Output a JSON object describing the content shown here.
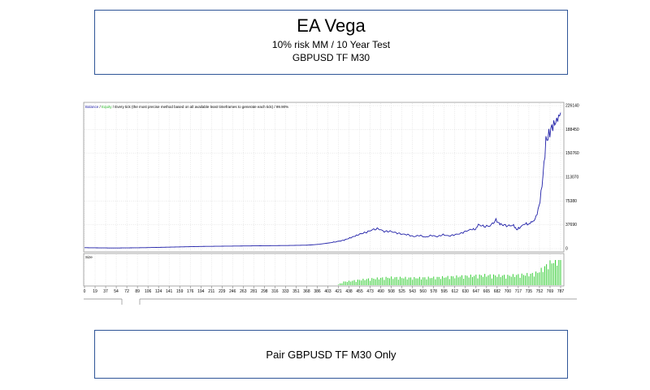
{
  "header": {
    "title": "EA Vega",
    "subtitle": "10% risk MM / 10 Year Test",
    "pair": "GBPUSD TF M30"
  },
  "footer": {
    "text": "Pair GBPUSD TF M30 Only"
  },
  "chart_data": {
    "type": "line",
    "legend": {
      "balance": "Balance",
      "separator": " / ",
      "equity": "Equity",
      "info": " / Every tick (the most precise method based on all available least timeframes to generate each tick) / 99.90%"
    },
    "colors": {
      "balance": "#1f1fa8",
      "equity": "#2eb82e",
      "volume": "#33cc33",
      "grid": "#c8c8c8"
    },
    "y_ticks": [
      0,
      37690,
      75380,
      113070,
      150760,
      188450,
      226140
    ],
    "y_tick_labels": [
      "0",
      "37690",
      "75380",
      "113070",
      "150760",
      "188450",
      "226140"
    ],
    "ylim": [
      0,
      226140
    ],
    "xlim": [
      0,
      810
    ],
    "x_tick_labels": [
      "0",
      "19",
      "37",
      "54",
      "72",
      "89",
      "106",
      "124",
      "141",
      "159",
      "176",
      "194",
      "211",
      "229",
      "246",
      "263",
      "281",
      "298",
      "316",
      "333",
      "351",
      "368",
      "386",
      "403",
      "421",
      "438",
      "455",
      "473",
      "490",
      "508",
      "525",
      "543",
      "560",
      "578",
      "595",
      "612",
      "630",
      "647",
      "665",
      "682",
      "700",
      "717",
      "735",
      "752",
      "769",
      "787"
    ],
    "volume_label": "Size",
    "series": [
      {
        "name": "Balance",
        "x": [
          0,
          50,
          100,
          150,
          200,
          250,
          300,
          350,
          380,
          400,
          420,
          440,
          455,
          470,
          480,
          490,
          500,
          510,
          520,
          530,
          540,
          550,
          560,
          570,
          580,
          590,
          600,
          610,
          620,
          630,
          640,
          650,
          660,
          665,
          670,
          680,
          690,
          700,
          705,
          710,
          720,
          730,
          735,
          740,
          750,
          755,
          760,
          765,
          770,
          775,
          780,
          785,
          790,
          795,
          800,
          805,
          810
        ],
        "y": [
          1500,
          1000,
          1500,
          2500,
          3500,
          4000,
          4500,
          5000,
          5500,
          7000,
          9500,
          13000,
          18000,
          23500,
          26000,
          30000,
          31500,
          27000,
          27500,
          25000,
          23000,
          22000,
          19000,
          21000,
          18000,
          21000,
          19000,
          22000,
          20000,
          22000,
          24000,
          28000,
          31000,
          30000,
          38000,
          35000,
          36000,
          45000,
          40000,
          38000,
          36000,
          37000,
          30000,
          33000,
          40000,
          38000,
          42000,
          44000,
          55000,
          75000,
          115000,
          170000,
          180000,
          192000,
          198000,
          205000,
          215000
        ]
      }
    ],
    "volume": {
      "x": [
        0,
        430,
        440,
        480,
        520,
        560,
        600,
        640,
        680,
        720,
        760,
        770,
        780,
        790,
        800,
        810
      ],
      "y": [
        0,
        0,
        0.12,
        0.22,
        0.28,
        0.26,
        0.28,
        0.32,
        0.36,
        0.34,
        0.4,
        0.45,
        0.6,
        0.78,
        0.88,
        0.95
      ]
    }
  }
}
